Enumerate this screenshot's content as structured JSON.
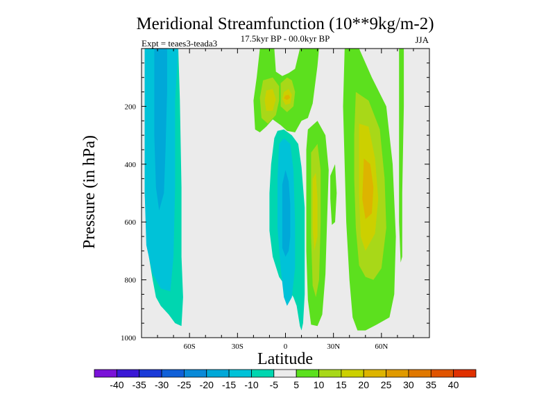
{
  "chart_data": {
    "type": "heatmap",
    "title": "Meridional Streamfunction (10**9kg/m-2)",
    "subtitle": "17.5kyr BP - 00.0kyr BP",
    "left_label": "Expt = teaes3-teada3",
    "right_label": "JJA",
    "xlabel": "Latitude",
    "ylabel": "Pressure (in hPa)",
    "xlim": [
      -90,
      90
    ],
    "ylim": [
      0,
      1000
    ],
    "x_ticks": [
      {
        "value": -60,
        "label": "60S"
      },
      {
        "value": -30,
        "label": "30S"
      },
      {
        "value": 0,
        "label": "0"
      },
      {
        "value": 30,
        "label": "30N"
      },
      {
        "value": 60,
        "label": "60N"
      }
    ],
    "y_ticks": [
      {
        "value": 200,
        "label": "200"
      },
      {
        "value": 400,
        "label": "400"
      },
      {
        "value": 600,
        "label": "600"
      },
      {
        "value": 800,
        "label": "800"
      },
      {
        "value": 1000,
        "label": "1000"
      }
    ],
    "colorbar": {
      "labels": [
        "-40",
        "-35",
        "-30",
        "-25",
        "-20",
        "-15",
        "-10",
        "-5",
        "5",
        "10",
        "15",
        "20",
        "25",
        "30",
        "35",
        "40"
      ],
      "colors": [
        "#7a12d8",
        "#3a18d6",
        "#1a3ad8",
        "#1060d8",
        "#0a8ad8",
        "#00a8d8",
        "#00c2d8",
        "#00d6b0",
        "#ebebeb",
        "#5ce01e",
        "#a8d818",
        "#ccd000",
        "#ddb400",
        "#e09a00",
        "#e07800",
        "#e05400",
        "#e03000"
      ]
    },
    "regions": [
      {
        "name": "sh-westerly-cell",
        "sign": "negative",
        "polygons": [
          {
            "level": 1,
            "points": [
              [
                -88,
                0
              ],
              [
                -67,
                0
              ],
              [
                -66,
                180
              ],
              [
                -65,
                480
              ],
              [
                -65,
                720
              ],
              [
                -64,
                860
              ],
              [
                -65,
                960
              ],
              [
                -69,
                950
              ],
              [
                -73,
                920
              ],
              [
                -78,
                890
              ],
              [
                -81,
                860
              ],
              [
                -83,
                800
              ],
              [
                -86,
                700
              ],
              [
                -88,
                500
              ],
              [
                -88,
                300
              ]
            ]
          },
          {
            "level": 2,
            "points": [
              [
                -88,
                0
              ],
              [
                -67,
                0
              ],
              [
                -69,
                180
              ],
              [
                -69,
                480
              ],
              [
                -70,
                720
              ],
              [
                -72,
                840
              ],
              [
                -78,
                830
              ],
              [
                -83,
                780
              ],
              [
                -87,
                680
              ],
              [
                -88,
                500
              ],
              [
                -88,
                300
              ]
            ]
          },
          {
            "level": 3,
            "points": [
              [
                -82,
                0
              ],
              [
                -74,
                0
              ],
              [
                -74,
                150
              ],
              [
                -75,
                350
              ],
              [
                -76,
                500
              ],
              [
                -79,
                560
              ],
              [
                -81,
                480
              ],
              [
                -82,
                300
              ],
              [
                -82,
                120
              ]
            ]
          }
        ]
      },
      {
        "name": "deep-tropical-negative",
        "sign": "negative",
        "polygons": [
          {
            "level": 1,
            "points": [
              [
                -1,
                280
              ],
              [
                4,
                300
              ],
              [
                8,
                330
              ],
              [
                10,
                410
              ],
              [
                12,
                550
              ],
              [
                12,
                700
              ],
              [
                12,
                850
              ],
              [
                11,
                950
              ],
              [
                10,
                975
              ],
              [
                9,
                960
              ],
              [
                7,
                890
              ],
              [
                5,
                860
              ],
              [
                1,
                830
              ],
              [
                -4,
                790
              ],
              [
                -8,
                720
              ],
              [
                -10,
                630
              ],
              [
                -10,
                500
              ],
              [
                -9,
                400
              ],
              [
                -7,
                310
              ],
              [
                -5,
                285
              ]
            ]
          },
          {
            "level": 2,
            "points": [
              [
                -1,
                310
              ],
              [
                3,
                330
              ],
              [
                5,
                420
              ],
              [
                6,
                600
              ],
              [
                6,
                760
              ],
              [
                4,
                860
              ],
              [
                1,
                890
              ],
              [
                -1,
                860
              ],
              [
                -3,
                760
              ],
              [
                -5,
                620
              ],
              [
                -5,
                450
              ],
              [
                -4,
                330
              ]
            ]
          },
          {
            "level": 3,
            "points": [
              [
                0,
                420
              ],
              [
                2,
                460
              ],
              [
                3,
                540
              ],
              [
                3,
                650
              ],
              [
                2,
                700
              ],
              [
                0,
                720
              ],
              [
                -2,
                690
              ],
              [
                -2,
                580
              ],
              [
                -2,
                470
              ]
            ]
          }
        ]
      },
      {
        "name": "upper-tropical-positive",
        "sign": "positive",
        "polygons": [
          {
            "level": 1,
            "points": [
              [
                -16,
                0
              ],
              [
                -7,
                0
              ],
              [
                -6,
                80
              ],
              [
                -2,
                95
              ],
              [
                2,
                85
              ],
              [
                6,
                70
              ],
              [
                9,
                0
              ],
              [
                21,
                0
              ],
              [
                20,
                60
              ],
              [
                17,
                190
              ],
              [
                14,
                240
              ],
              [
                10,
                250
              ],
              [
                6,
                290
              ],
              [
                1,
                285
              ],
              [
                -3,
                265
              ],
              [
                -8,
                245
              ],
              [
                -12,
                270
              ],
              [
                -16,
                290
              ],
              [
                -19,
                280
              ],
              [
                -20,
                180
              ],
              [
                -18,
                100
              ]
            ]
          },
          {
            "level": 2,
            "points": [
              [
                -14,
                110
              ],
              [
                -8,
                100
              ],
              [
                -4,
                130
              ],
              [
                -4,
                180
              ],
              [
                -6,
                230
              ],
              [
                -11,
                260
              ],
              [
                -15,
                240
              ],
              [
                -16,
                170
              ]
            ]
          },
          {
            "level": 2,
            "points": [
              [
                -3,
                120
              ],
              [
                1,
                100
              ],
              [
                4,
                110
              ],
              [
                6,
                150
              ],
              [
                5,
                200
              ],
              [
                1,
                220
              ],
              [
                -3,
                200
              ],
              [
                -3,
                150
              ]
            ]
          },
          {
            "level": 3,
            "points": [
              [
                -12,
                145
              ],
              [
                -8,
                140
              ],
              [
                -6,
                175
              ],
              [
                -8,
                215
              ],
              [
                -12,
                215
              ],
              [
                -13,
                180
              ]
            ]
          },
          {
            "level": 3,
            "points": [
              [
                -1,
                150
              ],
              [
                2,
                140
              ],
              [
                4,
                160
              ],
              [
                3,
                190
              ],
              [
                0,
                195
              ],
              [
                -2,
                175
              ]
            ]
          },
          {
            "level": 4,
            "points": [
              [
                0,
                162
              ],
              [
                2,
                160
              ],
              [
                3,
                170
              ],
              [
                1,
                178
              ],
              [
                -1,
                172
              ]
            ]
          }
        ]
      },
      {
        "name": "nh-subtropical-positive",
        "sign": "positive",
        "polygons": [
          {
            "level": 1,
            "points": [
              [
                14,
                280
              ],
              [
                20,
                250
              ],
              [
                25,
                300
              ],
              [
                27,
                420
              ],
              [
                26,
                600
              ],
              [
                25,
                780
              ],
              [
                23,
                920
              ],
              [
                20,
                960
              ],
              [
                16,
                955
              ],
              [
                14,
                870
              ],
              [
                13,
                700
              ],
              [
                13,
                500
              ],
              [
                13,
                350
              ]
            ]
          },
          {
            "level": 2,
            "points": [
              [
                16,
                360
              ],
              [
                20,
                330
              ],
              [
                22,
                420
              ],
              [
                22,
                600
              ],
              [
                21,
                800
              ],
              [
                19,
                860
              ],
              [
                17,
                820
              ],
              [
                16,
                650
              ],
              [
                16,
                480
              ]
            ]
          },
          {
            "level": 3,
            "points": [
              [
                17,
                450
              ],
              [
                19,
                430
              ],
              [
                20,
                520
              ],
              [
                20,
                650
              ],
              [
                18,
                700
              ],
              [
                17,
                620
              ]
            ]
          }
        ]
      },
      {
        "name": "nh-thin-positive",
        "sign": "positive",
        "polygons": [
          {
            "level": 1,
            "points": [
              [
                28,
                440
              ],
              [
                31,
                400
              ],
              [
                32,
                500
              ],
              [
                31,
                600
              ],
              [
                29,
                610
              ],
              [
                28,
                520
              ]
            ]
          }
        ]
      },
      {
        "name": "nh-midlat-positive",
        "sign": "positive",
        "polygons": [
          {
            "level": 1,
            "points": [
              [
                37,
                0
              ],
              [
                46,
                0
              ],
              [
                54,
                100
              ],
              [
                63,
                200
              ],
              [
                67,
                400
              ],
              [
                69,
                650
              ],
              [
                68,
                850
              ],
              [
                65,
                930
              ],
              [
                57,
                955
              ],
              [
                50,
                975
              ],
              [
                45,
                975
              ],
              [
                42,
                930
              ],
              [
                40,
                800
              ],
              [
                38,
                600
              ],
              [
                37,
                400
              ],
              [
                36,
                200
              ]
            ]
          },
          {
            "level": 2,
            "points": [
              [
                44,
                150
              ],
              [
                52,
                180
              ],
              [
                59,
                280
              ],
              [
                62,
                450
              ],
              [
                63,
                620
              ],
              [
                60,
                760
              ],
              [
                55,
                800
              ],
              [
                50,
                790
              ],
              [
                46,
                750
              ],
              [
                44,
                620
              ],
              [
                43,
                450
              ],
              [
                43,
                300
              ]
            ]
          },
          {
            "level": 3,
            "points": [
              [
                46,
                260
              ],
              [
                52,
                270
              ],
              [
                56,
                380
              ],
              [
                58,
                520
              ],
              [
                56,
                640
              ],
              [
                50,
                700
              ],
              [
                47,
                650
              ],
              [
                46,
                500
              ],
              [
                46,
                380
              ]
            ]
          },
          {
            "level": 4,
            "points": [
              [
                49,
                380
              ],
              [
                53,
                400
              ],
              [
                55,
                480
              ],
              [
                54,
                570
              ],
              [
                50,
                590
              ],
              [
                48,
                520
              ]
            ]
          }
        ]
      },
      {
        "name": "nh-edge-positive",
        "sign": "positive",
        "polygons": [
          {
            "level": 1,
            "points": [
              [
                71,
                0
              ],
              [
                74,
                0
              ],
              [
                74,
                200
              ],
              [
                73,
                500
              ],
              [
                73,
                720
              ],
              [
                72,
                740
              ],
              [
                71,
                600
              ],
              [
                71,
                300
              ]
            ]
          }
        ]
      }
    ]
  }
}
